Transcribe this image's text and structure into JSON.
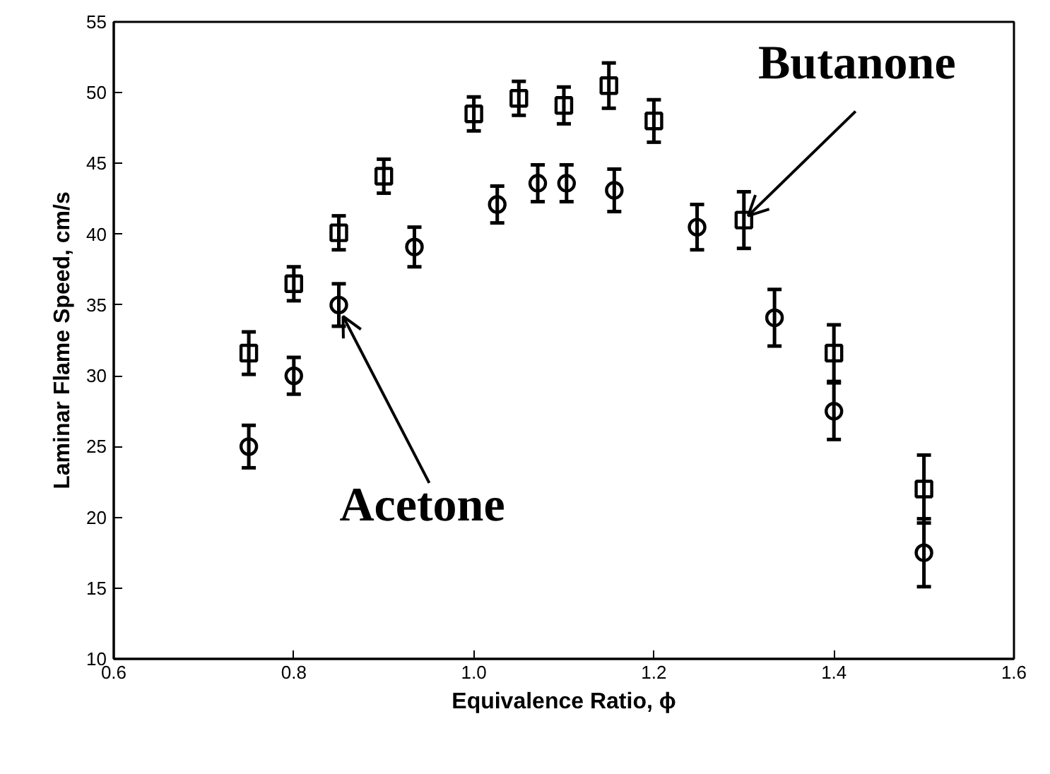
{
  "chart_data": {
    "type": "scatter",
    "xlabel": "Equivalence Ratio, ϕ",
    "ylabel": "Laminar Flame Speed, cm/s",
    "xlim": [
      0.6,
      1.6
    ],
    "xticks": [
      0.6,
      0.8,
      {
        "value": 1.0,
        "label": "1.0"
      },
      1.2,
      1.4,
      1.6
    ],
    "ylim": [
      10,
      55
    ],
    "yticks": [
      10,
      15,
      20,
      25,
      30,
      35,
      40,
      45,
      50,
      55
    ],
    "grid": false,
    "series": [
      {
        "color": "#000000",
        "marker": "square",
        "x": [
          0.75,
          0.8,
          0.85,
          0.9,
          1.0,
          1.05,
          1.1,
          1.15,
          1.2,
          1.3,
          1.4,
          1.5
        ],
        "values": [
          31.6,
          36.5,
          40.1,
          44.1,
          48.5,
          49.6,
          49.1,
          50.5,
          48.0,
          41.0,
          31.6,
          22.0
        ],
        "errors": [
          1.5,
          1.2,
          1.2,
          1.2,
          1.2,
          1.2,
          1.3,
          1.6,
          1.5,
          2.0,
          2.0,
          2.4
        ]
      },
      {
        "color": "#000000",
        "marker": "circle",
        "x": [
          0.75,
          0.8,
          0.85,
          0.934,
          1.026,
          1.071,
          1.103,
          1.156,
          1.248,
          1.334,
          1.4,
          1.5
        ],
        "values": [
          25.0,
          30.0,
          35.0,
          39.1,
          42.1,
          43.6,
          43.6,
          43.1,
          40.5,
          34.1,
          27.5,
          17.5
        ],
        "errors": [
          1.5,
          1.3,
          1.5,
          1.4,
          1.3,
          1.3,
          1.3,
          1.5,
          1.6,
          2.0,
          2.0,
          2.4
        ]
      }
    ],
    "annotations": [
      {
        "text": "Acetone",
        "x": 0.85,
        "y": 35.0
      },
      {
        "text": "Butanone",
        "x": 1.3,
        "y": 41.0
      }
    ]
  }
}
